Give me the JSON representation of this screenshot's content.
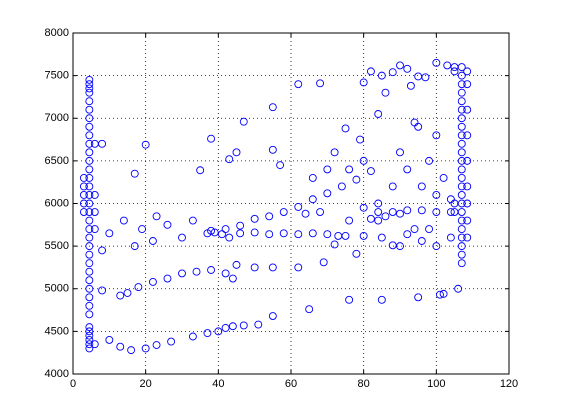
{
  "chart_data": {
    "type": "scatter",
    "color": "#0000ff",
    "marker": "open-circle",
    "grid": true,
    "xlim": [
      0,
      120
    ],
    "xticks": [
      0,
      20,
      40,
      60,
      80,
      100,
      120
    ],
    "ylim": [
      4000,
      8000
    ],
    "yticks": [
      4000,
      4500,
      5000,
      5500,
      6000,
      6500,
      7000,
      7500,
      8000
    ],
    "x": [
      4.5,
      4.5,
      4.5,
      4.5,
      4.5,
      4.5,
      4.5,
      4.5,
      4.5,
      4.5,
      4.5,
      4.5,
      4.5,
      4.5,
      4.5,
      4.5,
      4.5,
      4.5,
      4.5,
      4.5,
      4.5,
      4.5,
      4.5,
      4.5,
      4.5,
      4.5,
      4.5,
      4.5,
      4.5,
      4.5,
      4.5,
      4.5,
      4.5,
      4.5,
      4.5,
      4.5,
      3,
      3,
      3,
      3,
      3,
      6,
      6,
      6,
      6,
      107,
      107,
      107,
      107,
      107,
      107,
      107,
      107,
      107,
      107,
      107,
      107,
      107,
      107,
      107,
      107,
      107,
      107,
      107,
      107,
      107,
      107,
      107,
      107,
      108.5,
      108.5,
      108.5,
      108.5,
      108.5,
      108.5,
      108.5,
      108.5,
      108.5,
      105,
      105,
      105,
      105,
      6,
      10,
      13,
      16,
      20,
      23,
      27,
      33,
      37,
      40,
      42,
      44,
      47,
      51,
      55,
      65,
      76,
      85,
      95,
      102,
      8,
      13,
      15,
      18,
      22,
      26,
      30,
      34,
      38,
      42,
      44,
      45,
      50,
      55,
      62,
      69,
      78,
      88,
      96,
      104,
      37,
      39,
      41,
      43,
      46,
      50,
      54,
      58,
      62,
      66,
      70,
      73,
      75,
      38,
      42,
      46,
      50,
      54,
      58,
      62,
      66,
      70,
      74,
      78,
      82,
      80,
      84,
      88,
      92,
      96,
      100,
      104,
      82,
      86,
      90,
      62,
      68,
      55,
      80,
      82,
      85,
      88,
      90,
      92,
      95,
      97,
      100,
      103,
      93,
      86,
      84,
      75,
      72,
      79,
      94,
      95,
      100,
      98,
      102,
      90,
      92,
      96,
      100,
      104,
      88,
      84,
      80,
      76,
      70,
      66,
      45,
      38,
      20,
      8,
      47,
      55,
      57,
      43,
      35,
      17,
      33,
      23,
      14,
      19,
      10,
      30,
      22,
      17,
      8,
      26,
      106,
      101,
      94,
      100,
      90,
      84,
      76,
      68,
      64,
      72,
      80,
      85,
      92,
      98
    ],
    "values": [
      4300,
      4350,
      4400,
      4450,
      4500,
      4550,
      4700,
      4800,
      4900,
      5000,
      5100,
      5200,
      5300,
      5400,
      5500,
      5600,
      5700,
      5800,
      5900,
      6000,
      6100,
      6200,
      6300,
      6400,
      6500,
      6600,
      6700,
      6800,
      6900,
      7000,
      7100,
      7200,
      7300,
      7350,
      7400,
      7450,
      5900,
      6000,
      6100,
      6200,
      6300,
      5700,
      5900,
      6100,
      6700,
      5300,
      5400,
      5500,
      5600,
      5700,
      5800,
      5900,
      6000,
      6100,
      6200,
      6300,
      6400,
      6500,
      6600,
      6700,
      6800,
      6900,
      7000,
      7100,
      7200,
      7300,
      7400,
      7500,
      7600,
      5600,
      5800,
      6000,
      6200,
      6500,
      6800,
      7100,
      7400,
      7550,
      7550,
      7600,
      5900,
      6000,
      4350,
      4400,
      4320,
      4280,
      4300,
      4340,
      4380,
      4440,
      4480,
      4500,
      4540,
      4560,
      4570,
      4580,
      4680,
      4760,
      4870,
      4870,
      4900,
      4940,
      4980,
      4920,
      4950,
      5020,
      5080,
      5120,
      5180,
      5200,
      5220,
      5180,
      5120,
      5280,
      5250,
      5250,
      5250,
      5310,
      5410,
      5510,
      5560,
      5600,
      5650,
      5660,
      5640,
      5600,
      5650,
      5660,
      5640,
      5650,
      5640,
      5650,
      5640,
      5620,
      5620,
      5680,
      5700,
      5740,
      5820,
      5850,
      5900,
      5960,
      6050,
      6120,
      6200,
      6280,
      6380,
      5950,
      5900,
      5900,
      5920,
      5920,
      5900,
      5900,
      5820,
      5850,
      5880,
      7400,
      7410,
      7130,
      7420,
      7550,
      7500,
      7540,
      7620,
      7580,
      7490,
      7480,
      7650,
      7620,
      7380,
      7300,
      7050,
      6880,
      6600,
      6750,
      6950,
      6900,
      6800,
      6500,
      6300,
      6600,
      6400,
      6200,
      6100,
      6050,
      6200,
      6000,
      6500,
      6400,
      6400,
      6300,
      6600,
      6760,
      6690,
      6700,
      6960,
      6630,
      6450,
      6520,
      6390,
      6350,
      5800,
      5850,
      5800,
      5700,
      5650,
      5600,
      5560,
      5500,
      5450,
      5750,
      5000,
      4930,
      5700,
      5500,
      5500,
      5800,
      5800,
      5900,
      5880,
      5520,
      5620,
      5600,
      5640,
      5700
    ]
  }
}
